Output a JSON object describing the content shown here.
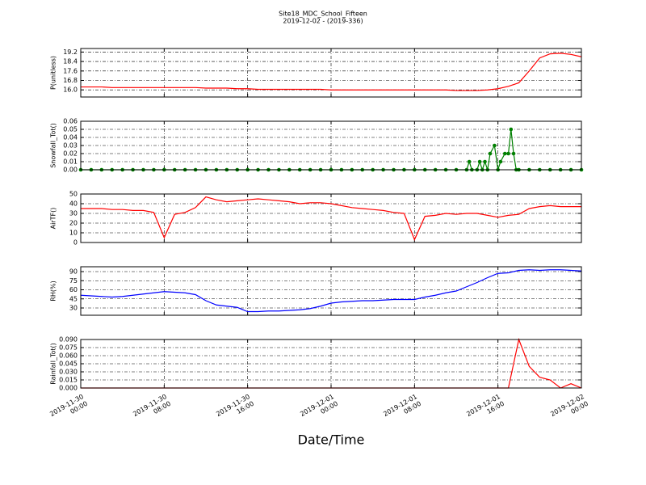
{
  "chart_data": {
    "type": "line",
    "title": "Site18_MDC_School_Fifteen",
    "subtitle": "2019-12-02 - (2019-336)",
    "xlabel": "Date/Time",
    "grid": true,
    "xlim": [
      "2019-11-30 00:00",
      "2019-12-02 00:00"
    ],
    "xticks": [
      {
        "value": "2019-11-30 00:00",
        "label": "2019-11-30\n00:00"
      },
      {
        "value": "2019-11-30 08:00",
        "label": "2019-11-30\n08:00"
      },
      {
        "value": "2019-11-30 16:00",
        "label": "2019-11-30\n16:00"
      },
      {
        "value": "2019-12-01 00:00",
        "label": "2019-12-01\n00:00"
      },
      {
        "value": "2019-12-01 08:00",
        "label": "2019-12-01\n08:00"
      },
      {
        "value": "2019-12-01 16:00",
        "label": "2019-12-01\n16:00"
      },
      {
        "value": "2019-12-02 00:00",
        "label": "2019-12-02\n00:00"
      }
    ],
    "x": [
      "2019-11-30 00:00",
      "2019-11-30 01:00",
      "2019-11-30 02:00",
      "2019-11-30 03:00",
      "2019-11-30 04:00",
      "2019-11-30 05:00",
      "2019-11-30 06:00",
      "2019-11-30 07:00",
      "2019-11-30 08:00",
      "2019-11-30 09:00",
      "2019-11-30 10:00",
      "2019-11-30 11:00",
      "2019-11-30 12:00",
      "2019-11-30 13:00",
      "2019-11-30 14:00",
      "2019-11-30 15:00",
      "2019-11-30 16:00",
      "2019-11-30 17:00",
      "2019-11-30 18:00",
      "2019-11-30 19:00",
      "2019-11-30 20:00",
      "2019-11-30 21:00",
      "2019-11-30 22:00",
      "2019-11-30 23:00",
      "2019-12-01 00:00",
      "2019-12-01 01:00",
      "2019-12-01 02:00",
      "2019-12-01 03:00",
      "2019-12-01 04:00",
      "2019-12-01 05:00",
      "2019-12-01 06:00",
      "2019-12-01 07:00",
      "2019-12-01 08:00",
      "2019-12-01 09:00",
      "2019-12-01 10:00",
      "2019-12-01 11:00",
      "2019-12-01 12:00",
      "2019-12-01 13:00",
      "2019-12-01 14:00",
      "2019-12-01 15:00",
      "2019-12-01 16:00",
      "2019-12-01 17:00",
      "2019-12-01 18:00",
      "2019-12-01 19:00",
      "2019-12-01 20:00",
      "2019-12-01 21:00",
      "2019-12-01 22:00",
      "2019-12-01 23:00",
      "2019-12-02 00:00"
    ],
    "panels": [
      {
        "ylabel": "P(unitless)",
        "ylim": [
          15.4,
          19.5
        ],
        "yticks": [
          {
            "value": 16,
            "label": "16.0"
          },
          16.8,
          17.6,
          18.4,
          19.2
        ],
        "series": [
          {
            "color": "#ff0000",
            "values": [
              16.25,
              16.25,
              16.25,
              16.2,
              16.2,
              16.2,
              16.2,
              16.2,
              16.2,
              16.2,
              16.2,
              16.2,
              16.15,
              16.15,
              16.15,
              16.1,
              16.1,
              16.05,
              16.05,
              16.05,
              16.05,
              16.05,
              16.05,
              16.05,
              16.0,
              16.0,
              16.0,
              16.0,
              16.0,
              16.0,
              16.0,
              16.0,
              16.0,
              16.0,
              16.0,
              16.0,
              15.95,
              15.95,
              15.95,
              16.0,
              16.1,
              16.3,
              16.6,
              17.6,
              18.7,
              19.05,
              19.1,
              19.0,
              18.8
            ]
          }
        ]
      },
      {
        "ylabel": "Snowfall_Tot()",
        "ylim": [
          0,
          0.06
        ],
        "marker": "o",
        "yticks": [
          {
            "value": 0,
            "label": "0.00"
          },
          0.01,
          0.02,
          0.03,
          0.04,
          0.05,
          0.06
        ],
        "x": [
          "2019-11-30 00:00",
          "2019-11-30 01:00",
          "2019-11-30 02:00",
          "2019-11-30 03:00",
          "2019-11-30 04:00",
          "2019-11-30 05:00",
          "2019-11-30 06:00",
          "2019-11-30 07:00",
          "2019-11-30 08:00",
          "2019-11-30 09:00",
          "2019-11-30 10:00",
          "2019-11-30 11:00",
          "2019-11-30 12:00",
          "2019-11-30 13:00",
          "2019-11-30 14:00",
          "2019-11-30 15:00",
          "2019-11-30 16:00",
          "2019-11-30 17:00",
          "2019-11-30 18:00",
          "2019-11-30 19:00",
          "2019-11-30 20:00",
          "2019-11-30 21:00",
          "2019-11-30 22:00",
          "2019-11-30 23:00",
          "2019-12-01 00:00",
          "2019-12-01 01:00",
          "2019-12-01 02:00",
          "2019-12-01 03:00",
          "2019-12-01 04:00",
          "2019-12-01 05:00",
          "2019-12-01 06:00",
          "2019-12-01 07:00",
          "2019-12-01 08:00",
          "2019-12-01 09:00",
          "2019-12-01 10:00",
          "2019-12-01 11:00",
          "2019-12-01 12:00",
          "2019-12-01 13:00",
          "2019-12-01 13:15",
          "2019-12-01 13:30",
          "2019-12-01 14:00",
          "2019-12-01 14:15",
          "2019-12-01 14:30",
          "2019-12-01 14:45",
          "2019-12-01 15:00",
          "2019-12-01 15:15",
          "2019-12-01 15:40",
          "2019-12-01 16:00",
          "2019-12-01 16:15",
          "2019-12-01 16:40",
          "2019-12-01 17:00",
          "2019-12-01 17:15",
          "2019-12-01 17:30",
          "2019-12-01 17:45",
          "2019-12-01 18:00",
          "2019-12-01 19:00",
          "2019-12-01 20:00",
          "2019-12-01 21:00",
          "2019-12-01 22:00",
          "2019-12-01 23:00",
          "2019-12-02 00:00"
        ],
        "series": [
          {
            "color": "#008000",
            "values": [
              0,
              0,
              0,
              0,
              0,
              0,
              0,
              0,
              0,
              0,
              0,
              0,
              0,
              0,
              0,
              0,
              0,
              0,
              0,
              0,
              0,
              0,
              0,
              0,
              0,
              0,
              0,
              0,
              0,
              0,
              0,
              0,
              0,
              0,
              0,
              0,
              0,
              0,
              0.01,
              0,
              0,
              0.01,
              0,
              0.01,
              0,
              0.02,
              0.03,
              0,
              0.01,
              0.02,
              0.02,
              0.05,
              0.02,
              0,
              0,
              0,
              0,
              0,
              0,
              0,
              0
            ]
          }
        ]
      },
      {
        "ylabel": "AirTF()",
        "ylim": [
          0,
          50
        ],
        "yticks": [
          0,
          10,
          20,
          30,
          40,
          50
        ],
        "series": [
          {
            "color": "#ff0000",
            "values": [
              35,
              35,
              35,
              34,
              34,
              33,
              33,
              31,
              5,
              29,
              31,
              36,
              47,
              44,
              42,
              43,
              44,
              45,
              44,
              43,
              42,
              40,
              41,
              41,
              40,
              38,
              36,
              35,
              34,
              33,
              31,
              30,
              3,
              27,
              28,
              30,
              29,
              30,
              30,
              28,
              26,
              28,
              29,
              35,
              37,
              38,
              37,
              37,
              37
            ]
          }
        ]
      },
      {
        "ylabel": "RH(%)",
        "ylim": [
          18,
          98
        ],
        "yticks": [
          30,
          45,
          60,
          75,
          90
        ],
        "series": [
          {
            "color": "#0000ff",
            "values": [
              51,
              50,
              49,
              48,
              49,
              51,
              53,
              55,
              57,
              56,
              55,
              52,
              42,
              35,
              33,
              31,
              24,
              24,
              25,
              25,
              26,
              27,
              29,
              33,
              38,
              40,
              41,
              42,
              42,
              43,
              44,
              44,
              44,
              48,
              51,
              55,
              58,
              65,
              72,
              80,
              87,
              88,
              92,
              93,
              92,
              93,
              93,
              92,
              91
            ]
          }
        ]
      },
      {
        "ylabel": "Rainfall_Tot()",
        "ylim": [
          0,
          0.09
        ],
        "yticks": [
          {
            "value": 0,
            "label": "0.000"
          },
          0.015,
          {
            "value": 0.03,
            "label": "0.030"
          },
          0.045,
          {
            "value": 0.06,
            "label": "0.060"
          },
          0.075,
          {
            "value": 0.09,
            "label": "0.090"
          }
        ],
        "series": [
          {
            "color": "#ff0000",
            "values": [
              0,
              0,
              0,
              0,
              0,
              0,
              0,
              0,
              0,
              0,
              0,
              0,
              0,
              0,
              0,
              0,
              0,
              0,
              0,
              0,
              0,
              0,
              0,
              0,
              0,
              0,
              0,
              0,
              0,
              0,
              0,
              0,
              0,
              0,
              0,
              0,
              0,
              0,
              0,
              0,
              0,
              0,
              0.09,
              0.04,
              0.02,
              0.015,
              0,
              0.008,
              0
            ]
          }
        ]
      }
    ]
  }
}
